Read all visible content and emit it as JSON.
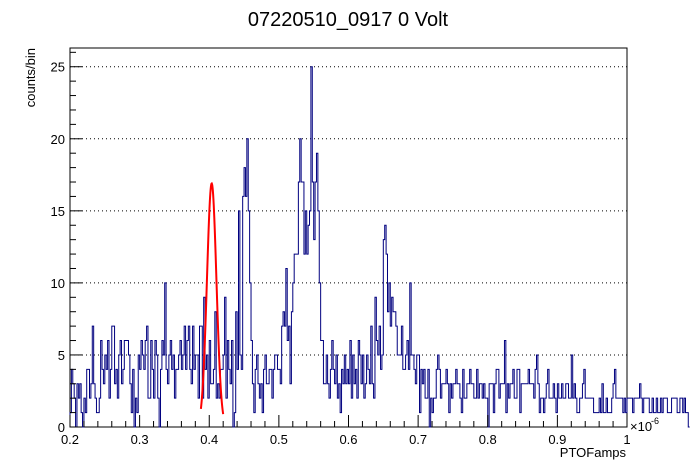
{
  "chart_data": {
    "type": "histogram",
    "title": "07220510_0917 0 Volt",
    "xlabel": "PTOFamps",
    "ylabel": "counts/bin",
    "x_exponent_base": "×10",
    "x_exponent_power": "-6",
    "xlim": [
      0.2,
      1.0
    ],
    "ylim": [
      0,
      26.3
    ],
    "x_ticks": [
      "0.2",
      "0.3",
      "0.4",
      "0.5",
      "0.6",
      "0.7",
      "0.8",
      "0.9",
      "1"
    ],
    "y_ticks": [
      "0",
      "5",
      "10",
      "15",
      "20",
      "25"
    ],
    "grid": "horizontal dotted at major y ticks",
    "colors": {
      "histogram": "#00007f",
      "fit": "#ff0000",
      "axis": "#000000"
    },
    "bin_width": 0.002,
    "series": [
      {
        "values": [
          1,
          4,
          3,
          2,
          0,
          3,
          2,
          3,
          1,
          0,
          2,
          1,
          4,
          4,
          2,
          3,
          7,
          3,
          2,
          1,
          1,
          2,
          6,
          4,
          3,
          5,
          4,
          6,
          2,
          4,
          7,
          7,
          3,
          4,
          2,
          5,
          6,
          3,
          4,
          6,
          6,
          6,
          5,
          3,
          1,
          4,
          0,
          2,
          1,
          5,
          4,
          6,
          5,
          4,
          6,
          7,
          2,
          2,
          6,
          4,
          2,
          6,
          5,
          2,
          0,
          4,
          6,
          5,
          10,
          4,
          3,
          5,
          6,
          4,
          5,
          2,
          4,
          4,
          5,
          6,
          4,
          5,
          7,
          4,
          6,
          7,
          4,
          3,
          7,
          4,
          5,
          5,
          2,
          7,
          7,
          2,
          9,
          4,
          5,
          2,
          6,
          3,
          3,
          4,
          8,
          2,
          3,
          2,
          4,
          4,
          5,
          9,
          2,
          6,
          4,
          3,
          6,
          0,
          1,
          8,
          4,
          15,
          5,
          4,
          16,
          18,
          16,
          20,
          15,
          10,
          6,
          3,
          1,
          4,
          5,
          3,
          2,
          3,
          1,
          4,
          5,
          3,
          3,
          4,
          4,
          2,
          4,
          5,
          5,
          4,
          4,
          3,
          7,
          8,
          7,
          11,
          6,
          7,
          3,
          8,
          10,
          12,
          12,
          12,
          17,
          20,
          17,
          17,
          12,
          15,
          12,
          14,
          15,
          25,
          17,
          13,
          17,
          19,
          15,
          10,
          6,
          6,
          3,
          3,
          5,
          3,
          2,
          4,
          6,
          4,
          3,
          5,
          2,
          3,
          1,
          4,
          3,
          5,
          3,
          4,
          3,
          6,
          2,
          5,
          3,
          4,
          2,
          6,
          5,
          3,
          5,
          2,
          3,
          5,
          4,
          3,
          7,
          3,
          2,
          9,
          6,
          5,
          7,
          4,
          5,
          13,
          14,
          12,
          8,
          10,
          7,
          9,
          8,
          8,
          7,
          5,
          5,
          5,
          7,
          4,
          4,
          5,
          6,
          4,
          10,
          5,
          5,
          4,
          3,
          5,
          5,
          1,
          4,
          3,
          4,
          2,
          2,
          4,
          0,
          2,
          1,
          2,
          2,
          4,
          5,
          4,
          2,
          3,
          3,
          3,
          4,
          3,
          1,
          3,
          2,
          3,
          3,
          4,
          3,
          3,
          2,
          1,
          4,
          2,
          2,
          3,
          3,
          4,
          3,
          3,
          2,
          2,
          4,
          2,
          3,
          3,
          2,
          3,
          2,
          2,
          0,
          3,
          3,
          3,
          1,
          3,
          4,
          4,
          2,
          3,
          3,
          3,
          6,
          1,
          3,
          2,
          3,
          3,
          4,
          2,
          2,
          4,
          4,
          1,
          3,
          3,
          3,
          3,
          3,
          4,
          3,
          3,
          3,
          2,
          4,
          5,
          3,
          1,
          2,
          2,
          1,
          2,
          3,
          4,
          2,
          2,
          2,
          3,
          2,
          1,
          3,
          2,
          2,
          3,
          2,
          2,
          3,
          3,
          2,
          2,
          5,
          2,
          3,
          2,
          1,
          1,
          2,
          2,
          3,
          4,
          2,
          2,
          2,
          2,
          2,
          2,
          1,
          1,
          1,
          1,
          2,
          1,
          3,
          1,
          1,
          2,
          1,
          1,
          1,
          2,
          3,
          4,
          2,
          2,
          2,
          2,
          2,
          1,
          2,
          1,
          2,
          2,
          2,
          2,
          1,
          2,
          2,
          2,
          2,
          3,
          2,
          1,
          2,
          2,
          2,
          2,
          1,
          1,
          2,
          1,
          1,
          2,
          1,
          1,
          2,
          1,
          2,
          2,
          2,
          1,
          1,
          1,
          2,
          2,
          2,
          2,
          1,
          1,
          2,
          2,
          1,
          2,
          1,
          1,
          0
        ]
      }
    ],
    "fit": {
      "type": "gaussian",
      "amplitude": 16.9,
      "mean": 0.4035,
      "sigma": 0.0068,
      "range": [
        0.388,
        0.42
      ]
    }
  }
}
